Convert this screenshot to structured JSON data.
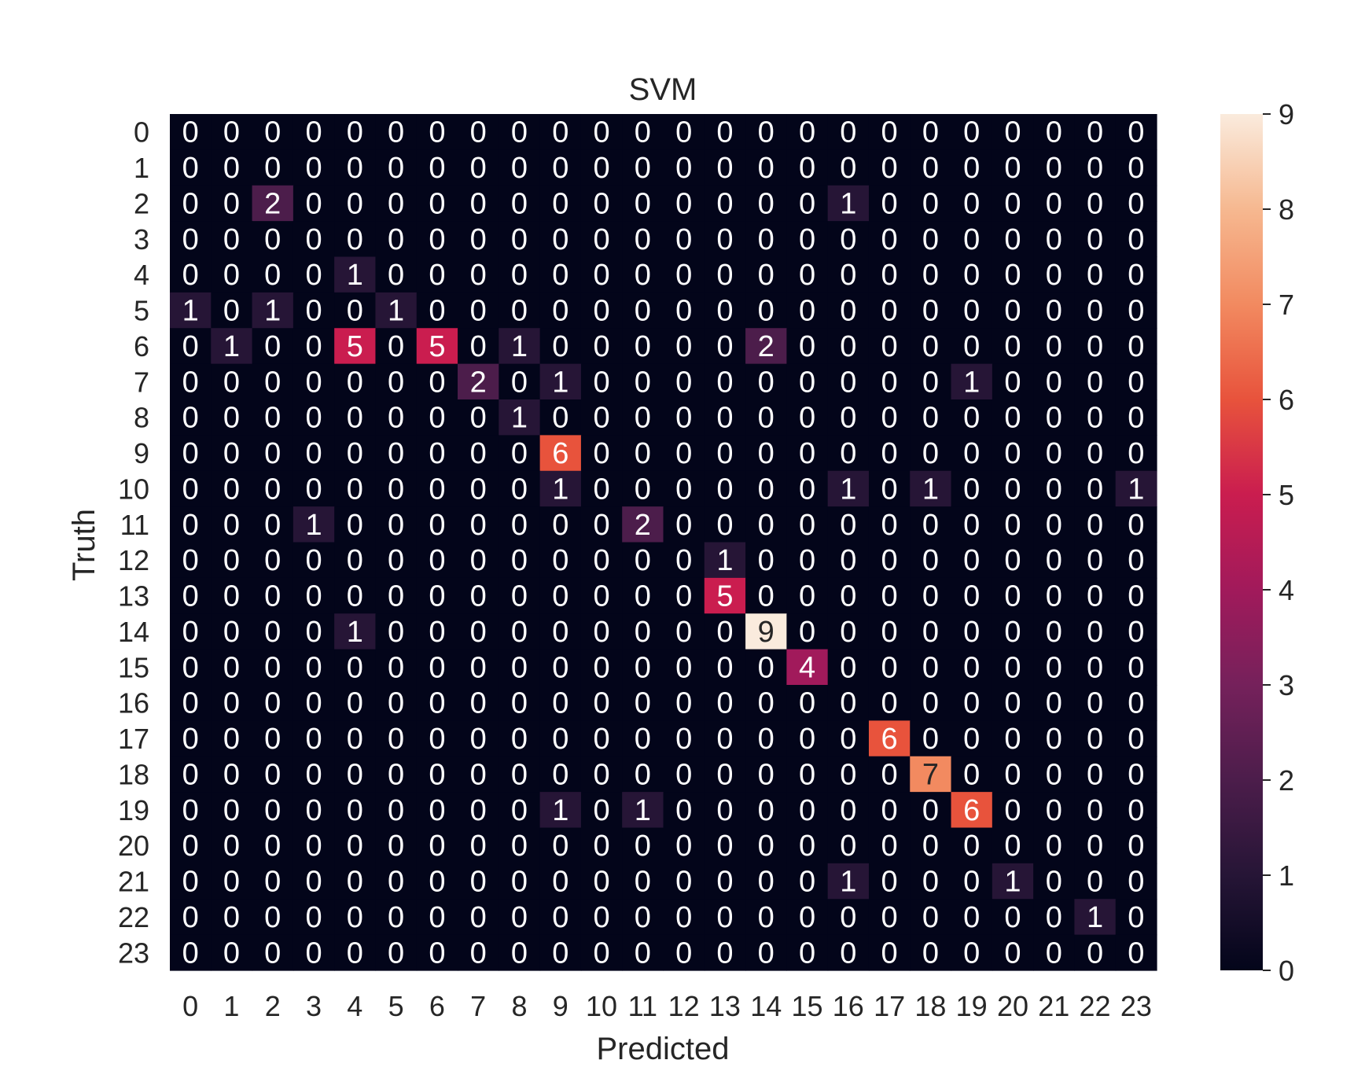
{
  "chart_data": {
    "type": "heatmap",
    "title": "SVM",
    "xlabel": "Predicted",
    "ylabel": "Truth",
    "x_categories": [
      "0",
      "1",
      "2",
      "3",
      "4",
      "5",
      "6",
      "7",
      "8",
      "9",
      "10",
      "11",
      "12",
      "13",
      "14",
      "15",
      "16",
      "17",
      "18",
      "19",
      "20",
      "21",
      "22",
      "23"
    ],
    "y_categories": [
      "0",
      "1",
      "2",
      "3",
      "4",
      "5",
      "6",
      "7",
      "8",
      "9",
      "10",
      "11",
      "12",
      "13",
      "14",
      "15",
      "16",
      "17",
      "18",
      "19",
      "20",
      "21",
      "22",
      "23"
    ],
    "values": [
      [
        0,
        0,
        0,
        0,
        0,
        0,
        0,
        0,
        0,
        0,
        0,
        0,
        0,
        0,
        0,
        0,
        0,
        0,
        0,
        0,
        0,
        0,
        0,
        0
      ],
      [
        0,
        0,
        0,
        0,
        0,
        0,
        0,
        0,
        0,
        0,
        0,
        0,
        0,
        0,
        0,
        0,
        0,
        0,
        0,
        0,
        0,
        0,
        0,
        0
      ],
      [
        0,
        0,
        2,
        0,
        0,
        0,
        0,
        0,
        0,
        0,
        0,
        0,
        0,
        0,
        0,
        0,
        1,
        0,
        0,
        0,
        0,
        0,
        0,
        0
      ],
      [
        0,
        0,
        0,
        0,
        0,
        0,
        0,
        0,
        0,
        0,
        0,
        0,
        0,
        0,
        0,
        0,
        0,
        0,
        0,
        0,
        0,
        0,
        0,
        0
      ],
      [
        0,
        0,
        0,
        0,
        1,
        0,
        0,
        0,
        0,
        0,
        0,
        0,
        0,
        0,
        0,
        0,
        0,
        0,
        0,
        0,
        0,
        0,
        0,
        0
      ],
      [
        1,
        0,
        1,
        0,
        0,
        1,
        0,
        0,
        0,
        0,
        0,
        0,
        0,
        0,
        0,
        0,
        0,
        0,
        0,
        0,
        0,
        0,
        0,
        0
      ],
      [
        0,
        1,
        0,
        0,
        5,
        0,
        5,
        0,
        1,
        0,
        0,
        0,
        0,
        0,
        2,
        0,
        0,
        0,
        0,
        0,
        0,
        0,
        0,
        0
      ],
      [
        0,
        0,
        0,
        0,
        0,
        0,
        0,
        2,
        0,
        1,
        0,
        0,
        0,
        0,
        0,
        0,
        0,
        0,
        0,
        1,
        0,
        0,
        0,
        0
      ],
      [
        0,
        0,
        0,
        0,
        0,
        0,
        0,
        0,
        1,
        0,
        0,
        0,
        0,
        0,
        0,
        0,
        0,
        0,
        0,
        0,
        0,
        0,
        0,
        0
      ],
      [
        0,
        0,
        0,
        0,
        0,
        0,
        0,
        0,
        0,
        6,
        0,
        0,
        0,
        0,
        0,
        0,
        0,
        0,
        0,
        0,
        0,
        0,
        0,
        0
      ],
      [
        0,
        0,
        0,
        0,
        0,
        0,
        0,
        0,
        0,
        1,
        0,
        0,
        0,
        0,
        0,
        0,
        1,
        0,
        1,
        0,
        0,
        0,
        0,
        1
      ],
      [
        0,
        0,
        0,
        1,
        0,
        0,
        0,
        0,
        0,
        0,
        0,
        2,
        0,
        0,
        0,
        0,
        0,
        0,
        0,
        0,
        0,
        0,
        0,
        0
      ],
      [
        0,
        0,
        0,
        0,
        0,
        0,
        0,
        0,
        0,
        0,
        0,
        0,
        0,
        1,
        0,
        0,
        0,
        0,
        0,
        0,
        0,
        0,
        0,
        0
      ],
      [
        0,
        0,
        0,
        0,
        0,
        0,
        0,
        0,
        0,
        0,
        0,
        0,
        0,
        5,
        0,
        0,
        0,
        0,
        0,
        0,
        0,
        0,
        0,
        0
      ],
      [
        0,
        0,
        0,
        0,
        1,
        0,
        0,
        0,
        0,
        0,
        0,
        0,
        0,
        0,
        9,
        0,
        0,
        0,
        0,
        0,
        0,
        0,
        0,
        0
      ],
      [
        0,
        0,
        0,
        0,
        0,
        0,
        0,
        0,
        0,
        0,
        0,
        0,
        0,
        0,
        0,
        4,
        0,
        0,
        0,
        0,
        0,
        0,
        0,
        0
      ],
      [
        0,
        0,
        0,
        0,
        0,
        0,
        0,
        0,
        0,
        0,
        0,
        0,
        0,
        0,
        0,
        0,
        0,
        0,
        0,
        0,
        0,
        0,
        0,
        0
      ],
      [
        0,
        0,
        0,
        0,
        0,
        0,
        0,
        0,
        0,
        0,
        0,
        0,
        0,
        0,
        0,
        0,
        0,
        6,
        0,
        0,
        0,
        0,
        0,
        0
      ],
      [
        0,
        0,
        0,
        0,
        0,
        0,
        0,
        0,
        0,
        0,
        0,
        0,
        0,
        0,
        0,
        0,
        0,
        0,
        7,
        0,
        0,
        0,
        0,
        0
      ],
      [
        0,
        0,
        0,
        0,
        0,
        0,
        0,
        0,
        0,
        1,
        0,
        1,
        0,
        0,
        0,
        0,
        0,
        0,
        0,
        6,
        0,
        0,
        0,
        0
      ],
      [
        0,
        0,
        0,
        0,
        0,
        0,
        0,
        0,
        0,
        0,
        0,
        0,
        0,
        0,
        0,
        0,
        0,
        0,
        0,
        0,
        0,
        0,
        0,
        0
      ],
      [
        0,
        0,
        0,
        0,
        0,
        0,
        0,
        0,
        0,
        0,
        0,
        0,
        0,
        0,
        0,
        0,
        1,
        0,
        0,
        0,
        1,
        0,
        0,
        0
      ],
      [
        0,
        0,
        0,
        0,
        0,
        0,
        0,
        0,
        0,
        0,
        0,
        0,
        0,
        0,
        0,
        0,
        0,
        0,
        0,
        0,
        0,
        0,
        1,
        0
      ],
      [
        0,
        0,
        0,
        0,
        0,
        0,
        0,
        0,
        0,
        0,
        0,
        0,
        0,
        0,
        0,
        0,
        0,
        0,
        0,
        0,
        0,
        0,
        0,
        0
      ]
    ],
    "colorbar": {
      "min": 0,
      "max": 9,
      "ticks": [
        0,
        1,
        2,
        3,
        4,
        5,
        6,
        7,
        8,
        9
      ],
      "colormap": "rocket"
    },
    "annot_colors": {
      "light": "#ffffff",
      "dark": "#262626"
    }
  }
}
